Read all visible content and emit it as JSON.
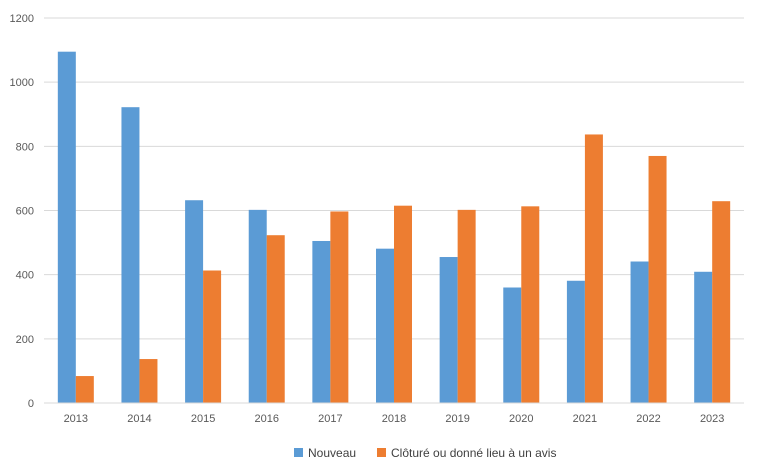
{
  "chart_data": {
    "type": "bar",
    "categories": [
      "2013",
      "2014",
      "2015",
      "2016",
      "2017",
      "2018",
      "2019",
      "2020",
      "2021",
      "2022",
      "2023"
    ],
    "series": [
      {
        "name": "Nouveau",
        "color": "#5b9bd5",
        "values": [
          1095,
          922,
          632,
          602,
          505,
          481,
          455,
          360,
          381,
          441,
          409
        ]
      },
      {
        "name": "Clôturé ou donné lieu à un avis",
        "color": "#ed7d31",
        "values": [
          84,
          137,
          413,
          523,
          597,
          615,
          602,
          613,
          837,
          770,
          629
        ]
      }
    ],
    "ylim": [
      0,
      1200
    ],
    "yticks": [
      0,
      200,
      400,
      600,
      800,
      1000,
      1200
    ],
    "grid": true,
    "legend_position": "bottom-center"
  }
}
